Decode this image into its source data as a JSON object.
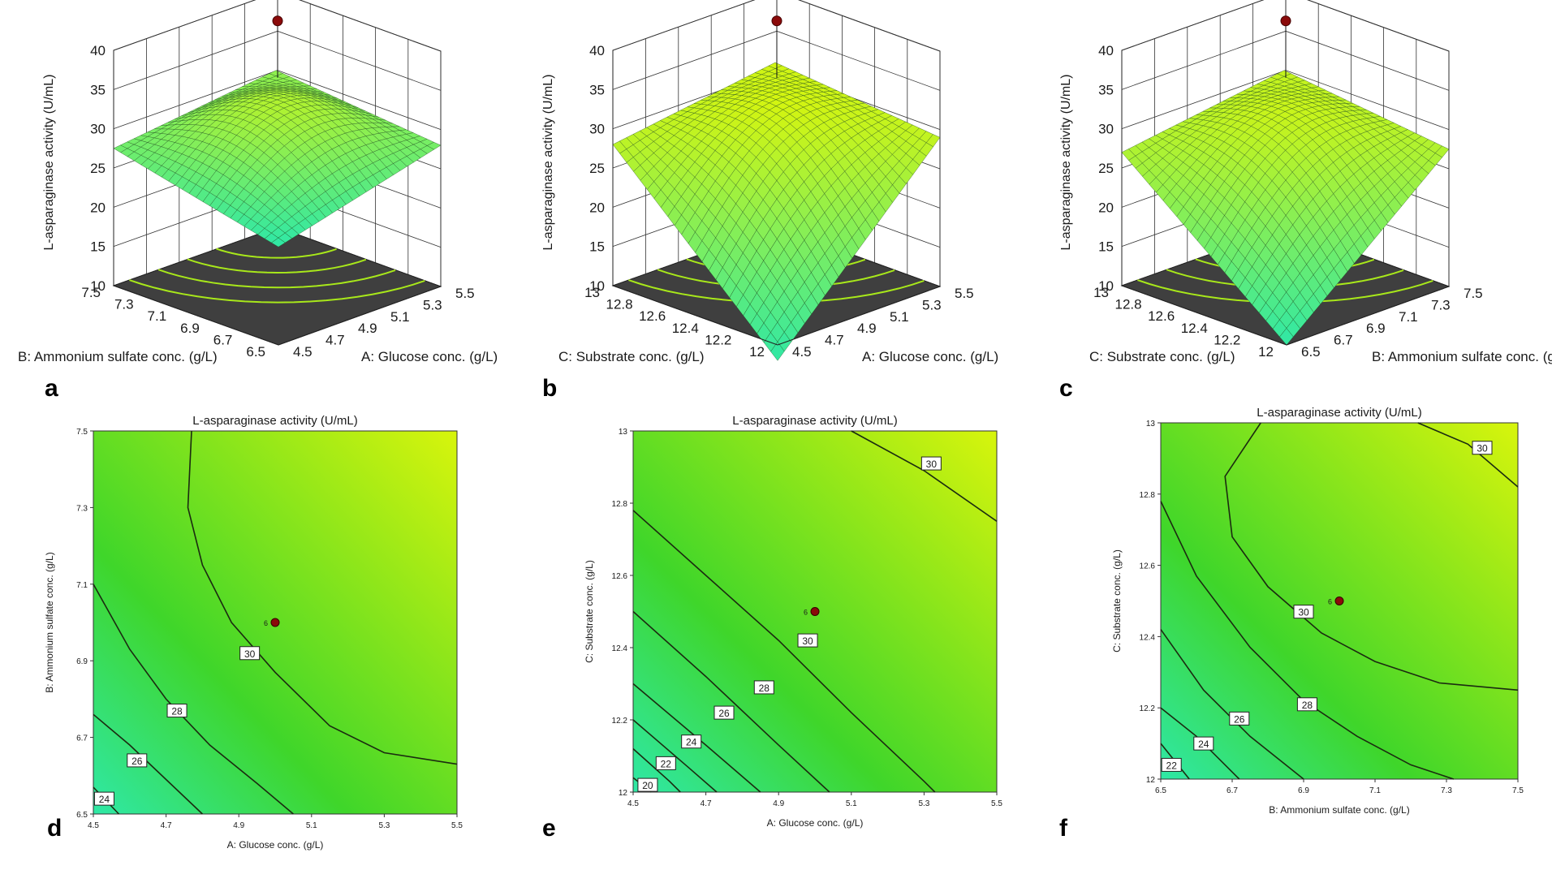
{
  "colors": {
    "surface_low": "#2fe8a6",
    "surface_high": "#d8f50c",
    "floor": "#3f3f3f",
    "point": "#8b0a0a"
  },
  "chart_data": [
    {
      "type": "surface3d",
      "panel_label": "a",
      "x": {
        "label": "A: Glucose conc. (g/L)",
        "range": [
          4.5,
          5.5
        ],
        "ticks": [
          "4.5",
          "4.7",
          "4.9",
          "5.1",
          "5.3",
          "5.5"
        ]
      },
      "y": {
        "label": "B: Ammonium sulfate conc. (g/L)",
        "range": [
          6.5,
          7.5
        ],
        "ticks": [
          "6.5",
          "6.7",
          "6.9",
          "7.1",
          "7.3",
          "7.5"
        ]
      },
      "z": {
        "label": "L-asparaginase activity (U/mL)",
        "range": [
          10,
          40
        ],
        "ticks": [
          "10",
          "15",
          "20",
          "25",
          "30",
          "35",
          "40"
        ]
      },
      "corners": {
        "x_lo_y_lo": 22.5,
        "x_hi_y_lo": 28.0,
        "x_lo_y_hi": 27.5,
        "x_hi_y_hi": 30.0
      },
      "design_point": {
        "x": 5.0,
        "y": 7.0,
        "z": 36.3
      }
    },
    {
      "type": "surface3d",
      "panel_label": "b",
      "x": {
        "label": "A: Glucose conc. (g/L)",
        "range": [
          4.5,
          5.5
        ],
        "ticks": [
          "4.5",
          "4.7",
          "4.9",
          "5.1",
          "5.3",
          "5.5"
        ]
      },
      "y": {
        "label": "C: Substrate conc. (g/L)",
        "range": [
          12,
          13
        ],
        "ticks": [
          "12",
          "12.2",
          "12.4",
          "12.6",
          "12.8",
          "13"
        ]
      },
      "z": {
        "label": "L-asparaginase activity (U/mL)",
        "range": [
          10,
          40
        ],
        "ticks": [
          "10",
          "15",
          "20",
          "25",
          "30",
          "35",
          "40"
        ]
      },
      "corners": {
        "x_lo_y_lo": 8.0,
        "x_hi_y_lo": 29.0,
        "x_lo_y_hi": 28.0,
        "x_hi_y_hi": 31.0
      },
      "design_point": {
        "x": 5.0,
        "y": 12.5,
        "z": 36.3
      }
    },
    {
      "type": "surface3d",
      "panel_label": "c",
      "x": {
        "label": "B: Ammonium sulfate conc. (g/L)",
        "range": [
          6.5,
          7.5
        ],
        "ticks": [
          "6.5",
          "6.7",
          "6.9",
          "7.1",
          "7.3",
          "7.5"
        ]
      },
      "y": {
        "label": "C: Substrate conc. (g/L)",
        "range": [
          12,
          13
        ],
        "ticks": [
          "12",
          "12.2",
          "12.4",
          "12.6",
          "12.8",
          "13"
        ]
      },
      "z": {
        "label": "L-asparaginase activity (U/mL)",
        "range": [
          10,
          40
        ],
        "ticks": [
          "10",
          "15",
          "20",
          "25",
          "30",
          "35",
          "40"
        ]
      },
      "corners": {
        "x_lo_y_lo": 10.0,
        "x_hi_y_lo": 27.5,
        "x_lo_y_hi": 27.0,
        "x_hi_y_hi": 30.0
      },
      "design_point": {
        "x": 7.0,
        "y": 12.5,
        "z": 36.3
      }
    },
    {
      "type": "contour",
      "panel_label": "d",
      "title": "L-asparaginase activity (U/mL)",
      "xlabel": "A: Glucose conc. (g/L)",
      "ylabel": "B: Ammonium sulfate conc. (g/L)",
      "xlim": [
        4.5,
        5.5
      ],
      "ylim": [
        6.5,
        7.5
      ],
      "xticks": [
        "4.5",
        "4.7",
        "4.9",
        "5.1",
        "5.3",
        "5.5"
      ],
      "yticks": [
        "6.5",
        "6.7",
        "6.9",
        "7.1",
        "7.3",
        "7.5"
      ],
      "contours": [
        {
          "level": "30",
          "points": [
            [
              4.77,
              7.5
            ],
            [
              4.76,
              7.3
            ],
            [
              4.8,
              7.15
            ],
            [
              4.88,
              7.0
            ],
            [
              5.0,
              6.87
            ],
            [
              5.15,
              6.73
            ],
            [
              5.3,
              6.66
            ],
            [
              5.5,
              6.63
            ]
          ],
          "label_at": [
            4.93,
            6.92
          ]
        },
        {
          "level": "28",
          "points": [
            [
              4.5,
              7.1
            ],
            [
              4.6,
              6.93
            ],
            [
              4.7,
              6.8
            ],
            [
              4.82,
              6.68
            ],
            [
              4.95,
              6.58
            ],
            [
              5.05,
              6.5
            ]
          ],
          "label_at": [
            4.73,
            6.77
          ]
        },
        {
          "level": "26",
          "points": [
            [
              4.5,
              6.76
            ],
            [
              4.6,
              6.68
            ],
            [
              4.7,
              6.59
            ],
            [
              4.8,
              6.5
            ]
          ],
          "label_at": [
            4.62,
            6.64
          ]
        },
        {
          "level": "24",
          "points": [
            [
              4.5,
              6.57
            ],
            [
              4.57,
              6.5
            ]
          ],
          "label_at": [
            4.53,
            6.54
          ]
        }
      ],
      "design_point": {
        "x": 5.0,
        "y": 7.0,
        "label": "6"
      }
    },
    {
      "type": "contour",
      "panel_label": "e",
      "title": "L-asparaginase activity (U/mL)",
      "xlabel": "A: Glucose conc. (g/L)",
      "ylabel": "C: Substrate conc. (g/L)",
      "xlim": [
        4.5,
        5.5
      ],
      "ylim": [
        12,
        13
      ],
      "xticks": [
        "4.5",
        "4.7",
        "4.9",
        "5.1",
        "5.3",
        "5.5"
      ],
      "yticks": [
        "12",
        "12.2",
        "12.4",
        "12.6",
        "12.8",
        "13"
      ],
      "contours": [
        {
          "level": "30",
          "points": [
            [
              4.5,
              12.78
            ],
            [
              4.7,
              12.6
            ],
            [
              4.9,
              12.42
            ],
            [
              5.1,
              12.22
            ],
            [
              5.3,
              12.03
            ],
            [
              5.33,
              12.0
            ]
          ],
          "label_at": [
            4.98,
            12.42
          ]
        },
        {
          "level": "30",
          "points": [
            [
              5.1,
              13.0
            ],
            [
              5.3,
              12.89
            ],
            [
              5.5,
              12.75
            ]
          ],
          "label_at": [
            5.32,
            12.91
          ]
        },
        {
          "level": "28",
          "points": [
            [
              4.5,
              12.5
            ],
            [
              4.7,
              12.32
            ],
            [
              4.9,
              12.13
            ],
            [
              5.04,
              12.0
            ]
          ],
          "label_at": [
            4.86,
            12.29
          ]
        },
        {
          "level": "26",
          "points": [
            [
              4.5,
              12.3
            ],
            [
              4.7,
              12.13
            ],
            [
              4.85,
              12.0
            ]
          ],
          "label_at": [
            4.75,
            12.22
          ]
        },
        {
          "level": "24",
          "points": [
            [
              4.5,
              12.2
            ],
            [
              4.65,
              12.07
            ],
            [
              4.73,
              12.0
            ]
          ],
          "label_at": [
            4.66,
            12.14
          ]
        },
        {
          "level": "22",
          "points": [
            [
              4.5,
              12.12
            ],
            [
              4.6,
              12.03
            ],
            [
              4.63,
              12.0
            ]
          ],
          "label_at": [
            4.59,
            12.08
          ]
        },
        {
          "level": "20",
          "points": [
            [
              4.5,
              12.04
            ],
            [
              4.55,
              12.0
            ]
          ],
          "label_at": [
            4.54,
            12.02
          ]
        }
      ],
      "design_point": {
        "x": 5.0,
        "y": 12.5,
        "label": "6"
      }
    },
    {
      "type": "contour",
      "panel_label": "f",
      "title": "L-asparaginase activity (U/mL)",
      "xlabel": "B: Ammonium sulfate conc. (g/L)",
      "ylabel": "C: Substrate conc. (g/L)",
      "xlim": [
        6.5,
        7.5
      ],
      "ylim": [
        12,
        13
      ],
      "xticks": [
        "6.5",
        "6.7",
        "6.9",
        "7.1",
        "7.3",
        "7.5"
      ],
      "yticks": [
        "12",
        "12.2",
        "12.4",
        "12.6",
        "12.8",
        "13"
      ],
      "contours": [
        {
          "level": "30",
          "points": [
            [
              6.78,
              13.0
            ],
            [
              6.68,
              12.85
            ],
            [
              6.7,
              12.68
            ],
            [
              6.8,
              12.54
            ],
            [
              6.95,
              12.41
            ],
            [
              7.1,
              12.33
            ],
            [
              7.28,
              12.27
            ],
            [
              7.5,
              12.25
            ]
          ],
          "label_at": [
            6.9,
            12.47
          ]
        },
        {
          "level": "30",
          "points": [
            [
              7.22,
              13.0
            ],
            [
              7.36,
              12.94
            ],
            [
              7.5,
              12.82
            ]
          ],
          "label_at": [
            7.4,
            12.93
          ]
        },
        {
          "level": "28",
          "points": [
            [
              6.5,
              12.78
            ],
            [
              6.6,
              12.57
            ],
            [
              6.75,
              12.37
            ],
            [
              6.9,
              12.22
            ],
            [
              7.05,
              12.12
            ],
            [
              7.2,
              12.04
            ],
            [
              7.32,
              12.0
            ]
          ],
          "label_at": [
            6.91,
            12.21
          ]
        },
        {
          "level": "26",
          "points": [
            [
              6.5,
              12.42
            ],
            [
              6.62,
              12.25
            ],
            [
              6.75,
              12.12
            ],
            [
              6.9,
              12.0
            ]
          ],
          "label_at": [
            6.72,
            12.17
          ]
        },
        {
          "level": "24",
          "points": [
            [
              6.5,
              12.2
            ],
            [
              6.6,
              12.12
            ],
            [
              6.72,
              12.0
            ]
          ],
          "label_at": [
            6.62,
            12.1
          ]
        },
        {
          "level": "22",
          "points": [
            [
              6.5,
              12.1
            ],
            [
              6.58,
              12.0
            ]
          ],
          "label_at": [
            6.53,
            12.04
          ]
        }
      ],
      "design_point": {
        "x": 7.0,
        "y": 12.5,
        "label": "6"
      }
    }
  ]
}
